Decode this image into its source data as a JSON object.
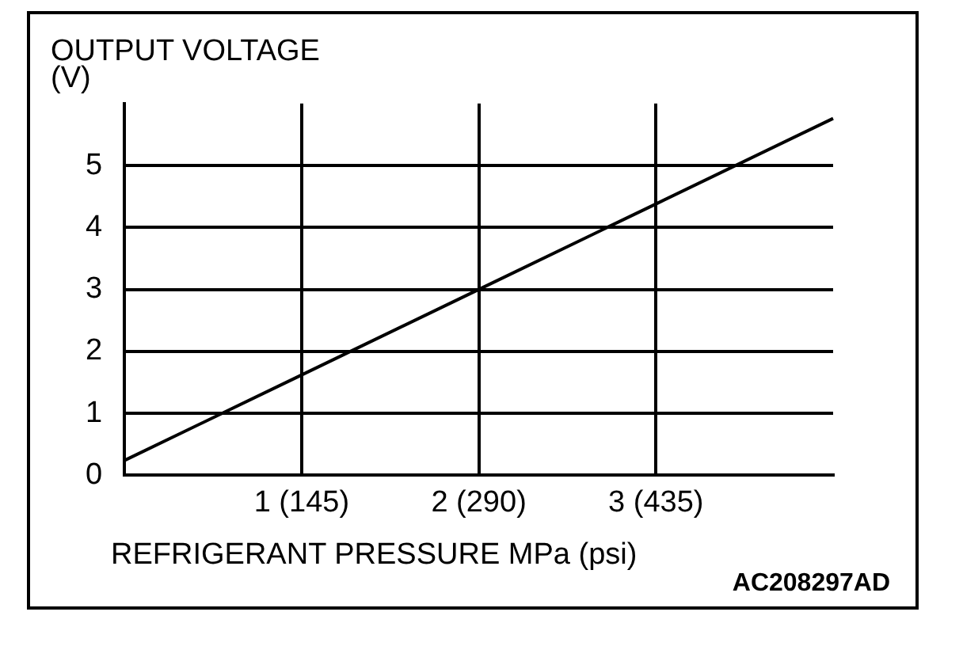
{
  "chart_data": {
    "type": "line",
    "ylabel": "OUTPUT VOLTAGE\n(V)",
    "xlabel": "REFRIGERANT PRESSURE MPa (psi)",
    "categories": [
      null,
      "1 (145)",
      "2 (290)",
      "3 (435)",
      null
    ],
    "series": [
      {
        "color": "#000000",
        "values": [
          0.24,
          1.62,
          3,
          4.38,
          5.76
        ]
      }
    ],
    "ylim": [
      0,
      6
    ],
    "yticks": [
      0,
      1,
      2,
      3,
      4,
      5
    ],
    "grid": true,
    "legend": false,
    "marker": "none",
    "line_style": "solid",
    "annotations": [
      "AC208297AD"
    ]
  }
}
